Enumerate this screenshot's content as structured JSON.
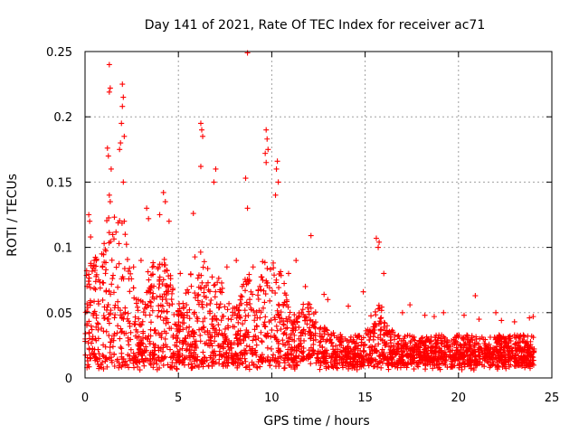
{
  "chart_data": {
    "type": "scatter",
    "title": "Day 141 of 2021, Rate Of TEC Index for receiver ac71",
    "xlabel": "GPS time / hours",
    "ylabel": "ROTI / TECUs",
    "xlim": [
      0,
      25
    ],
    "ylim": [
      0,
      0.25
    ],
    "xticks": [
      0,
      5,
      10,
      15,
      20,
      25
    ],
    "xtick_labels": [
      "0",
      "5",
      "10",
      "15",
      "20",
      "25"
    ],
    "yticks": [
      0,
      0.05,
      0.1,
      0.15,
      0.2,
      0.25
    ],
    "ytick_labels": [
      "0",
      "0.05",
      "0.1",
      "0.15",
      "0.2",
      "0.25"
    ],
    "grid": true,
    "marker": "plus",
    "series": [
      {
        "name": "ROTI",
        "color": "#ff0000",
        "x": [
          1.3,
          1.35,
          1.3,
          2.0,
          2.05,
          2.0,
          1.95,
          2.1,
          1.2,
          1.25,
          1.4,
          1.9,
          1.85,
          2.05,
          1.3,
          1.35,
          2.1,
          2.15,
          0.2,
          0.25,
          0.3,
          6.2,
          6.25,
          6.3,
          6.2,
          7.0,
          6.9,
          8.7,
          9.7,
          9.75,
          9.8,
          9.65,
          9.7,
          10.3,
          10.25,
          10.35,
          10.2,
          8.6,
          8.7,
          4.2,
          4.3,
          4.0,
          4.5,
          5.8,
          3.3,
          3.4,
          12.1,
          15.6,
          15.7,
          15.75,
          14.9,
          12.8,
          16.0,
          10.9,
          11.3,
          13.0,
          17.4,
          18.2,
          19.2,
          20.3,
          20.9,
          22.0,
          22.3,
          23.0,
          23.8,
          24.0,
          0.6,
          0.9,
          2.6,
          3.0,
          5.1,
          7.6,
          8.1,
          9.0,
          11.8,
          14.1,
          17.0,
          18.7,
          21.1
        ],
        "y": [
          0.24,
          0.222,
          0.219,
          0.225,
          0.215,
          0.208,
          0.195,
          0.185,
          0.176,
          0.17,
          0.16,
          0.18,
          0.175,
          0.15,
          0.14,
          0.135,
          0.12,
          0.11,
          0.125,
          0.12,
          0.108,
          0.195,
          0.19,
          0.185,
          0.162,
          0.16,
          0.15,
          0.249,
          0.19,
          0.183,
          0.175,
          0.172,
          0.165,
          0.166,
          0.16,
          0.15,
          0.14,
          0.153,
          0.13,
          0.142,
          0.135,
          0.125,
          0.12,
          0.126,
          0.13,
          0.122,
          0.109,
          0.107,
          0.1,
          0.104,
          0.066,
          0.064,
          0.08,
          0.08,
          0.09,
          0.06,
          0.056,
          0.048,
          0.05,
          0.048,
          0.063,
          0.05,
          0.044,
          0.043,
          0.046,
          0.047,
          0.09,
          0.095,
          0.085,
          0.09,
          0.08,
          0.085,
          0.09,
          0.085,
          0.07,
          0.055,
          0.05,
          0.047,
          0.045
        ]
      }
    ]
  }
}
